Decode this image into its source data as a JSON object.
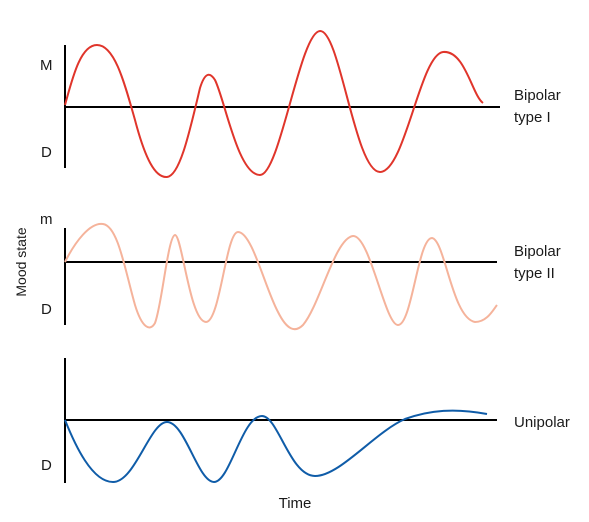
{
  "y_axis_label": "Mood state",
  "x_axis_label": "Time",
  "colors": {
    "axis": "#000000",
    "bipolar_type_1": "#e0352b",
    "bipolar_type_2": "#f5b39b",
    "unipolar": "#0f5ca8"
  },
  "panels": [
    {
      "id": "bipolar-type-1",
      "label_line1": "Bipolar",
      "label_line2": "type I",
      "top_tick": "M",
      "bottom_tick": "D"
    },
    {
      "id": "bipolar-type-2",
      "label_line1": "Bipolar",
      "label_line2": "type II",
      "top_tick": "m",
      "bottom_tick": "D"
    },
    {
      "id": "unipolar",
      "label_line1": "Unipolar",
      "label_line2": "",
      "top_tick": "",
      "bottom_tick": "D"
    }
  ]
}
